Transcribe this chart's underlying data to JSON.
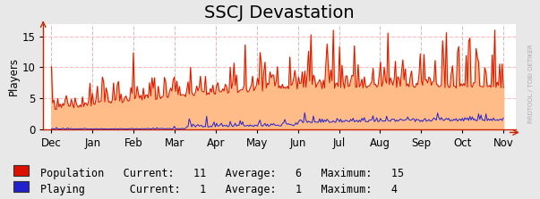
{
  "title": "SSCJ Devastation",
  "ylabel": "Players",
  "x_months": [
    "Dec",
    "Jan",
    "Feb",
    "Mar",
    "Apr",
    "May",
    "Jun",
    "Jul",
    "Aug",
    "Sep",
    "Oct",
    "Nov"
  ],
  "ylim": [
    0,
    17
  ],
  "yticks": [
    0,
    5,
    10,
    15
  ],
  "population_color": "#dd1100",
  "population_fill": "#ffbb88",
  "playing_color": "#2222cc",
  "background_color": "#e8e8e8",
  "plot_bg_color": "#ffffff",
  "grid_color_h": "#ffbbbb",
  "grid_color_v": "#ddbbbb",
  "watermark": "RRDTOOL / TOBI OETIKER",
  "legend_pop_label": "Population",
  "legend_play_label": "Playing",
  "pop_current": 11,
  "pop_average": 6,
  "pop_maximum": 15,
  "play_current": 1,
  "play_average": 1,
  "play_maximum": 4,
  "title_fontsize": 14,
  "axis_fontsize": 8.5,
  "legend_fontsize": 8.5
}
